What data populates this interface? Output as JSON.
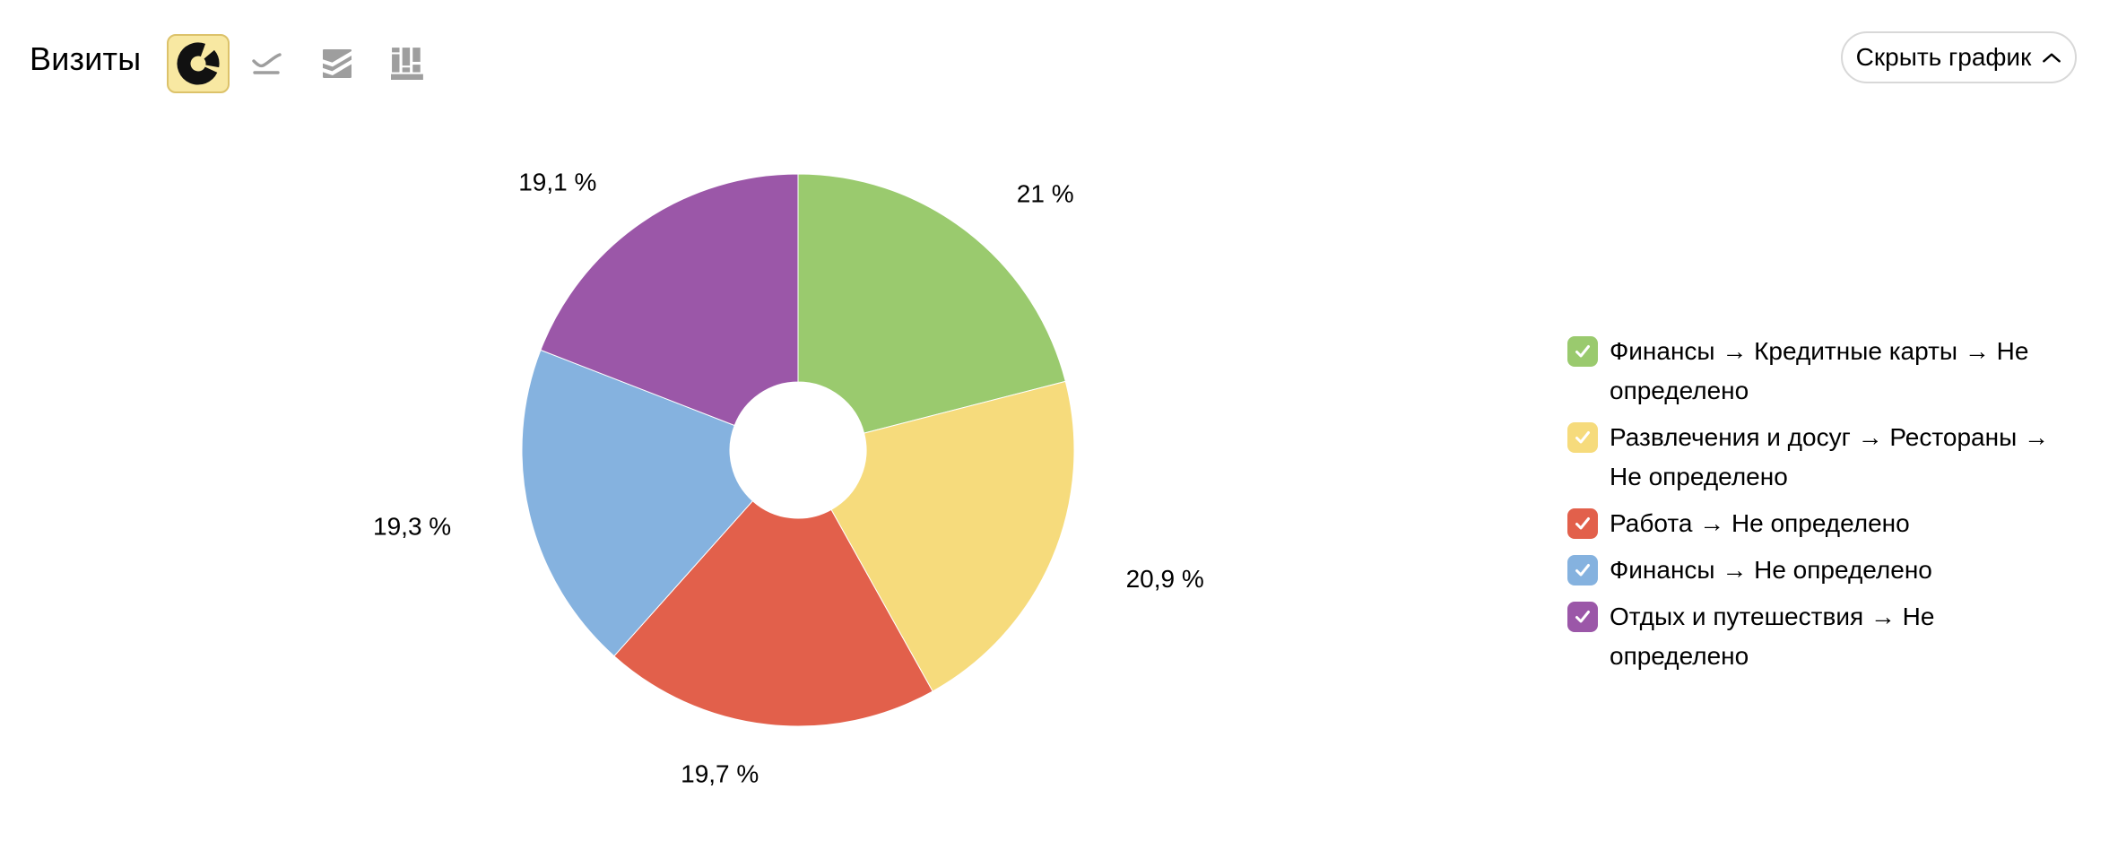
{
  "header": {
    "title": "Визиты",
    "chart_type_buttons": [
      {
        "name": "donut-chart",
        "selected": true
      },
      {
        "name": "line-chart",
        "selected": false
      },
      {
        "name": "stacked-area-chart",
        "selected": false
      },
      {
        "name": "column-chart",
        "selected": false
      }
    ],
    "hide_chart_button": {
      "label": "Скрыть график",
      "chevron": "up"
    }
  },
  "colors": {
    "green": "#9ACA6E",
    "yellow": "#F6DB7C",
    "red": "#E2604B",
    "blue": "#85B2DF",
    "purple": "#9B57A8",
    "icon_gray": "#9E9E9E",
    "selected_button_bg": "#F8E8A2",
    "selected_button_border": "#DCC26A"
  },
  "chart_data": {
    "type": "pie",
    "donut": true,
    "title": "Визиты",
    "start_angle_deg": 0,
    "direction": "clockwise",
    "legend_position": "right",
    "series": [
      {
        "label": "Финансы → Кредитные карты → Не определено",
        "value": 21.0,
        "display": "21 %",
        "color": "#9ACA6E",
        "checked": true
      },
      {
        "label": "Развлечения и досуг → Рестораны → Не определено",
        "value": 20.9,
        "display": "20,9 %",
        "color": "#F6DB7C",
        "checked": true
      },
      {
        "label": "Работа → Не определено",
        "value": 19.7,
        "display": "19,7 %",
        "color": "#E2604B",
        "checked": true
      },
      {
        "label": "Финансы → Не определено",
        "value": 19.3,
        "display": "19,3 %",
        "color": "#85B2DF",
        "checked": true
      },
      {
        "label": "Отдых и путешествия → Не определено",
        "value": 19.1,
        "display": "19,1 %",
        "color": "#9B57A8",
        "checked": true
      }
    ]
  }
}
